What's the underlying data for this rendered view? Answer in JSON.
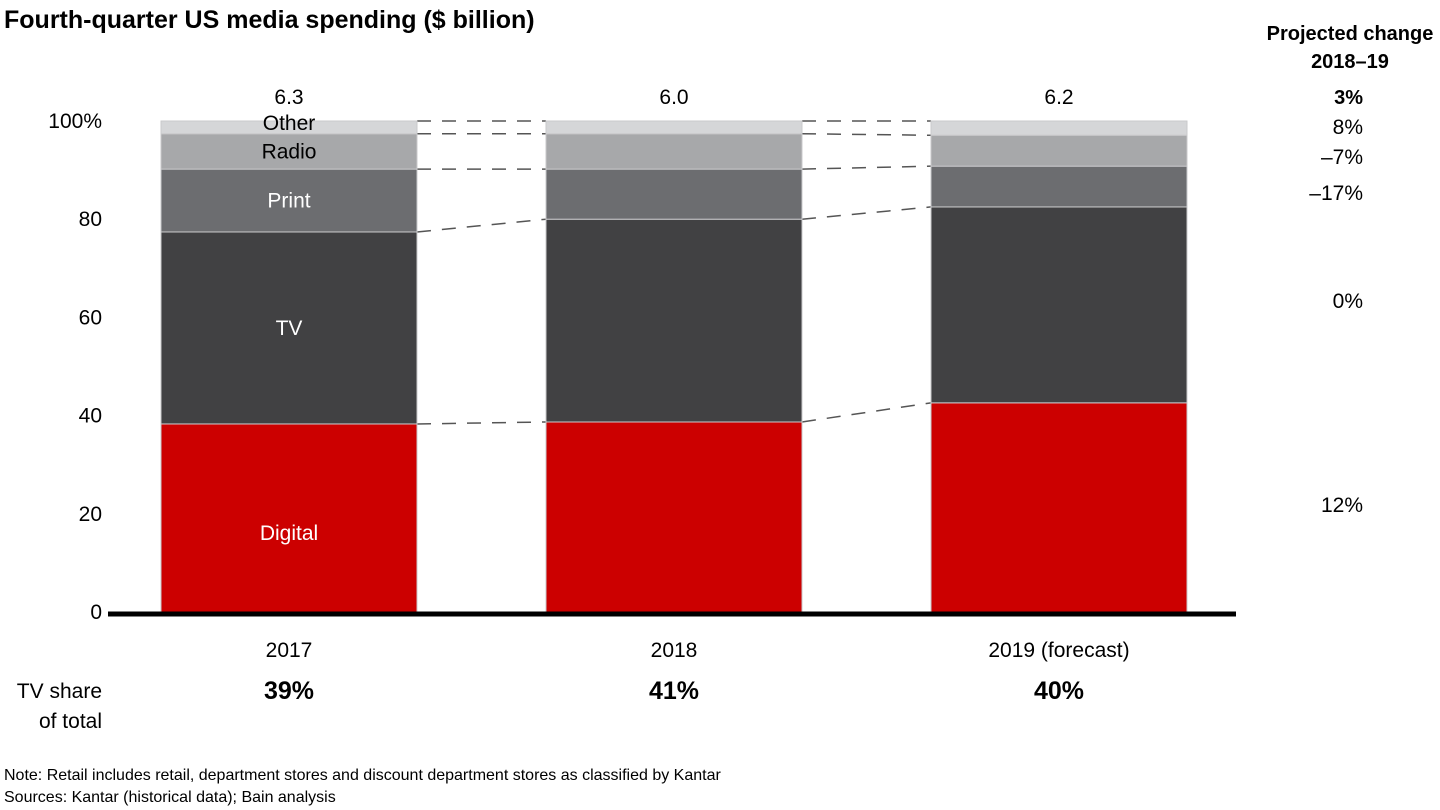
{
  "chart_data": {
    "type": "bar",
    "stacked": true,
    "normalized": true,
    "title": "Fourth-quarter US media spending ($ billion)",
    "xlabel": "",
    "ylabel": "",
    "ylim": [
      0,
      100
    ],
    "yticks": [
      0,
      20,
      40,
      60,
      80,
      100
    ],
    "ytick_labels": [
      "0",
      "20",
      "40",
      "60",
      "80",
      "100%"
    ],
    "grid": false,
    "categories": [
      "2017",
      "2018",
      "2019 (forecast)"
    ],
    "totals": [
      "6.3",
      "6.0",
      "6.2"
    ],
    "series": [
      {
        "name": "Digital",
        "color": "#cc0000",
        "label_color": "#ffffff",
        "values": [
          38.3,
          38.7,
          42.6
        ]
      },
      {
        "name": "TV",
        "color": "#414143",
        "label_color": "#ffffff",
        "values": [
          39.1,
          41.3,
          39.9
        ]
      },
      {
        "name": "Print",
        "color": "#6c6d70",
        "label_color": "#ffffff",
        "values": [
          12.8,
          10.2,
          8.3
        ]
      },
      {
        "name": "Radio",
        "color": "#a7a8aa",
        "label_color": "#000000",
        "values": [
          7.2,
          7.2,
          6.3
        ]
      },
      {
        "name": "Other",
        "color": "#d5d6d8",
        "label_color": "#000000",
        "values": [
          2.6,
          2.6,
          2.9
        ]
      }
    ],
    "segment_labels_on_bar_index": 0,
    "projected_change": {
      "header_line1": "Projected change",
      "header_line2": "2018–19",
      "total": "3%",
      "by_series": {
        "Other": "8%",
        "Radio": "–7%",
        "Print": "–17%",
        "TV": "0%",
        "Digital": "12%"
      }
    },
    "tv_share": {
      "label_line1": "TV share",
      "label_line2": "of total",
      "values": [
        "39%",
        "41%",
        "40%"
      ]
    }
  },
  "footer": {
    "note": "Note: Retail includes retail, department stores and discount department stores as classified by Kantar",
    "sources": "Sources: Kantar (historical data); Bain analysis"
  }
}
